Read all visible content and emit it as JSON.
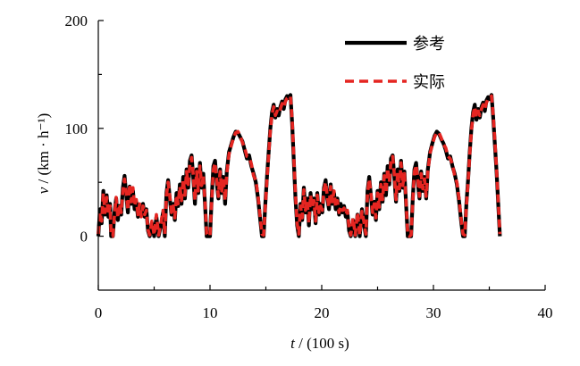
{
  "chart_data": {
    "type": "line",
    "xlabel": "t / (100 s)",
    "ylabel": "v / (km · h⁻¹)",
    "xlim": [
      0,
      40
    ],
    "ylim": [
      -50,
      200
    ],
    "xticks": [
      0,
      10,
      20,
      30,
      40
    ],
    "xtick_labels": [
      "0",
      "10",
      "20",
      "30",
      "40"
    ],
    "xminor": [
      5,
      15,
      25,
      35
    ],
    "yticks": [
      0,
      100,
      200
    ],
    "ytick_labels": [
      "0",
      "100",
      "200"
    ],
    "yminor": [
      50,
      150
    ],
    "grid": false,
    "legend": {
      "position": "top-right"
    },
    "x": [
      0,
      0.15,
      0.3,
      0.45,
      0.6,
      0.75,
      0.9,
      1.05,
      1.15,
      1.3,
      1.45,
      1.6,
      1.75,
      1.9,
      2.05,
      2.2,
      2.35,
      2.5,
      2.65,
      2.8,
      2.95,
      3.1,
      3.25,
      3.4,
      3.55,
      3.7,
      3.85,
      4.0,
      4.15,
      4.3,
      4.45,
      4.6,
      4.8,
      5.0,
      5.2,
      5.4,
      5.6,
      5.8,
      5.95,
      6.1,
      6.25,
      6.4,
      6.55,
      6.7,
      6.85,
      7.0,
      7.15,
      7.3,
      7.45,
      7.6,
      7.75,
      7.9,
      8.05,
      8.2,
      8.35,
      8.5,
      8.65,
      8.8,
      8.95,
      9.1,
      9.25,
      9.4,
      9.55,
      9.7,
      9.85,
      10.0,
      10.15,
      10.3,
      10.45,
      10.6,
      10.75,
      10.9,
      11.05,
      11.2,
      11.35,
      11.5,
      11.7,
      11.9,
      12.1,
      12.3,
      12.5,
      12.7,
      12.9,
      13.1,
      13.3,
      13.5,
      13.7,
      13.9,
      14.1,
      14.3,
      14.5,
      14.65,
      14.8,
      14.95,
      15.1,
      15.25,
      15.4,
      15.55,
      15.7,
      15.85,
      16.0,
      16.15,
      16.3,
      16.45,
      16.6,
      16.75,
      16.9,
      17.05,
      17.2,
      17.35,
      17.5,
      17.65,
      17.8,
      17.95,
      18.1,
      18.25,
      18.4,
      18.55,
      18.7,
      18.85,
      19.0,
      19.15,
      19.3,
      19.45,
      19.6,
      19.75,
      19.9,
      20.05,
      20.2,
      20.35,
      20.5,
      20.65,
      20.8,
      20.95,
      21.1,
      21.25,
      21.4,
      21.55,
      21.7,
      21.85,
      22.0,
      22.15,
      22.3,
      22.45,
      22.6,
      22.8,
      23.0,
      23.2,
      23.4,
      23.6,
      23.8,
      23.95,
      24.1,
      24.25,
      24.4,
      24.55,
      24.7,
      24.85,
      25.0,
      25.15,
      25.3,
      25.45,
      25.6,
      25.75,
      25.9,
      26.05,
      26.2,
      26.35,
      26.5,
      26.65,
      26.8,
      26.95,
      27.1,
      27.25,
      27.4,
      27.55,
      27.7,
      27.85,
      28.0,
      28.15,
      28.3,
      28.45,
      28.6,
      28.75,
      28.9,
      29.05,
      29.2,
      29.35,
      29.5,
      29.7,
      29.9,
      30.1,
      30.3,
      30.5,
      30.7,
      30.9,
      31.1,
      31.3,
      31.5,
      31.7,
      31.9,
      32.1,
      32.3,
      32.5,
      32.65,
      32.8,
      32.95,
      33.1,
      33.25,
      33.4,
      33.55,
      33.7,
      33.85,
      34.0,
      34.15,
      34.3,
      34.45,
      34.6,
      34.75,
      34.9,
      35.05,
      35.2,
      35.35,
      35.5,
      35.65,
      35.8,
      35.95
    ],
    "series": [
      {
        "name": "参考",
        "color": "#000000",
        "style": "solid",
        "values": [
          0,
          25,
          12,
          42,
          20,
          38,
          18,
          30,
          0,
          0,
          22,
          35,
          15,
          28,
          20,
          45,
          56,
          38,
          22,
          46,
          30,
          42,
          25,
          32,
          18,
          28,
          20,
          30,
          18,
          25,
          5,
          0,
          12,
          0,
          18,
          0,
          10,
          22,
          0,
          40,
          52,
          35,
          20,
          30,
          15,
          40,
          28,
          48,
          30,
          55,
          35,
          62,
          45,
          70,
          75,
          55,
          30,
          62,
          40,
          68,
          45,
          58,
          30,
          0,
          0,
          0,
          35,
          65,
          70,
          50,
          35,
          62,
          40,
          55,
          30,
          60,
          78,
          85,
          92,
          97,
          96,
          92,
          88,
          80,
          72,
          75,
          65,
          58,
          50,
          35,
          15,
          0,
          0,
          30,
          55,
          78,
          100,
          115,
          122,
          110,
          118,
          112,
          120,
          125,
          118,
          127,
          130,
          128,
          131,
          105,
          70,
          35,
          10,
          0,
          30,
          15,
          45,
          22,
          35,
          10,
          40,
          25,
          35,
          12,
          40,
          20,
          30,
          22,
          45,
          52,
          35,
          25,
          48,
          30,
          40,
          25,
          35,
          20,
          30,
          22,
          28,
          18,
          22,
          5,
          0,
          15,
          0,
          20,
          0,
          25,
          10,
          0,
          42,
          55,
          38,
          20,
          32,
          15,
          42,
          25,
          50,
          32,
          58,
          38,
          65,
          48,
          72,
          75,
          55,
          32,
          62,
          42,
          70,
          45,
          60,
          30,
          0,
          0,
          0,
          35,
          62,
          68,
          50,
          35,
          60,
          42,
          55,
          35,
          62,
          78,
          86,
          93,
          97,
          95,
          90,
          86,
          80,
          72,
          74,
          65,
          58,
          48,
          32,
          12,
          0,
          0,
          30,
          52,
          78,
          100,
          115,
          122,
          108,
          118,
          110,
          120,
          124,
          116,
          126,
          129,
          127,
          131,
          110,
          85,
          60,
          30,
          0
        ]
      },
      {
        "name": "实际",
        "color": "#e52521",
        "style": "dashed",
        "values": [
          2,
          22,
          14,
          40,
          22,
          36,
          20,
          28,
          2,
          0,
          20,
          36,
          17,
          30,
          22,
          42,
          53,
          40,
          24,
          48,
          32,
          45,
          28,
          34,
          20,
          30,
          18,
          28,
          20,
          24,
          6,
          1,
          14,
          1,
          20,
          1,
          12,
          24,
          2,
          38,
          50,
          37,
          22,
          28,
          17,
          38,
          30,
          46,
          33,
          53,
          38,
          60,
          48,
          67,
          73,
          57,
          33,
          60,
          42,
          65,
          47,
          56,
          32,
          2,
          0,
          1,
          33,
          62,
          68,
          53,
          37,
          60,
          42,
          53,
          33,
          58,
          76,
          84,
          91,
          96,
          97,
          93,
          87,
          82,
          74,
          73,
          67,
          56,
          52,
          37,
          17,
          2,
          1,
          28,
          53,
          76,
          98,
          113,
          120,
          112,
          116,
          114,
          118,
          123,
          120,
          125,
          128,
          129,
          130,
          108,
          73,
          38,
          12,
          2,
          28,
          17,
          43,
          24,
          33,
          12,
          38,
          27,
          33,
          14,
          38,
          22,
          28,
          24,
          43,
          50,
          37,
          27,
          46,
          32,
          42,
          27,
          33,
          22,
          28,
          24,
          26,
          20,
          24,
          7,
          1,
          17,
          1,
          22,
          1,
          23,
          12,
          2,
          40,
          53,
          40,
          22,
          30,
          17,
          40,
          27,
          48,
          34,
          56,
          40,
          63,
          50,
          70,
          74,
          57,
          34,
          60,
          44,
          68,
          47,
          58,
          32,
          2,
          0,
          1,
          33,
          60,
          66,
          52,
          37,
          58,
          44,
          53,
          37,
          60,
          77,
          85,
          92,
          96,
          96,
          91,
          85,
          82,
          74,
          72,
          67,
          56,
          50,
          34,
          14,
          2,
          1,
          28,
          50,
          76,
          98,
          113,
          120,
          110,
          116,
          112,
          118,
          122,
          118,
          124,
          127,
          128,
          130,
          112,
          88,
          62,
          32,
          2
        ]
      }
    ]
  }
}
